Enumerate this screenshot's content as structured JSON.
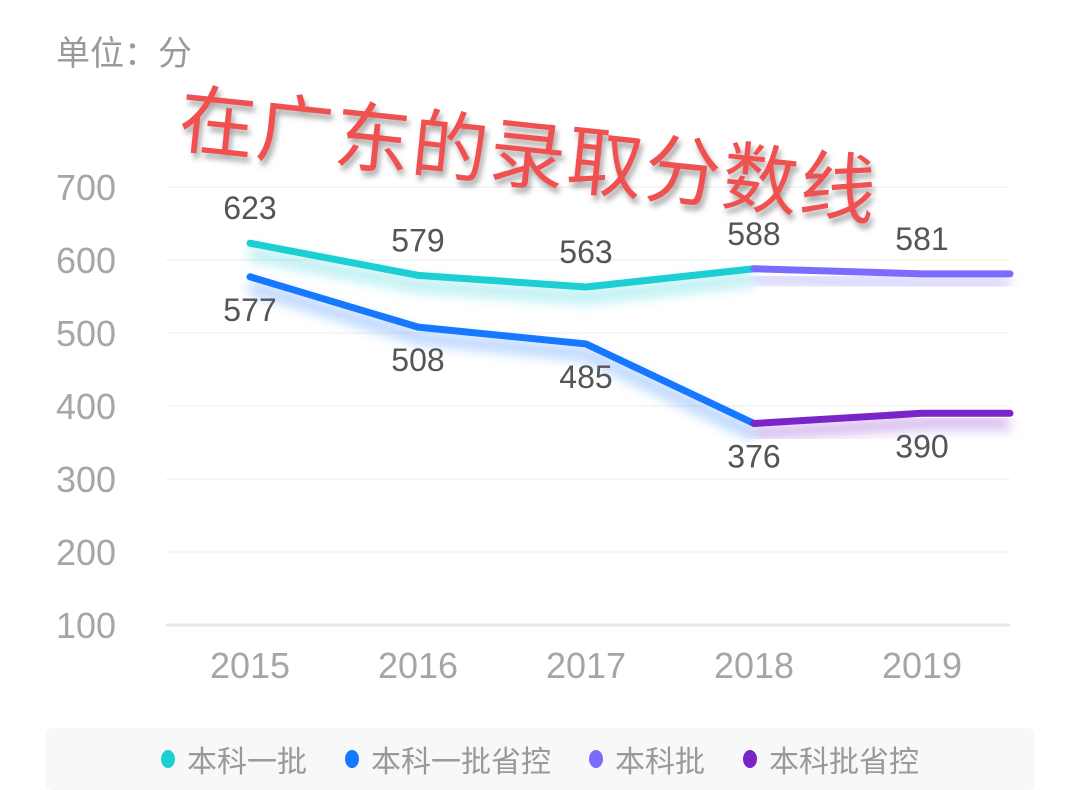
{
  "unit_label": "单位：分",
  "overlay_title": "在广东的录取分数线",
  "chart_data": {
    "type": "line",
    "title": "在广东的录取分数线",
    "ylabel": "单位：分",
    "xlabel": "",
    "categories": [
      "2015",
      "2016",
      "2017",
      "2018",
      "2019"
    ],
    "yticks": [
      100,
      200,
      300,
      400,
      500,
      600,
      700
    ],
    "ylim": [
      100,
      700
    ],
    "grid": true,
    "legend_position": "bottom",
    "series": [
      {
        "name": "本科一批",
        "color": "#1ccfd3",
        "values": [
          623,
          579,
          563,
          588,
          null
        ]
      },
      {
        "name": "本科一批省控",
        "color": "#1677ff",
        "values": [
          577,
          508,
          485,
          376,
          null
        ]
      },
      {
        "name": "本科批",
        "color": "#7b6cff",
        "values": [
          null,
          null,
          null,
          588,
          581
        ]
      },
      {
        "name": "本科批省控",
        "color": "#7a25c9",
        "values": [
          null,
          null,
          null,
          376,
          390
        ]
      }
    ],
    "data_labels": [
      {
        "text": "623",
        "x": "2015",
        "pos": "above"
      },
      {
        "text": "579",
        "x": "2016",
        "pos": "above"
      },
      {
        "text": "563",
        "x": "2017",
        "pos": "above"
      },
      {
        "text": "588",
        "x": "2018",
        "pos": "above"
      },
      {
        "text": "581",
        "x": "2019",
        "pos": "above"
      },
      {
        "text": "577",
        "x": "2015",
        "pos": "below"
      },
      {
        "text": "508",
        "x": "2016",
        "pos": "below"
      },
      {
        "text": "485",
        "x": "2017",
        "pos": "below"
      },
      {
        "text": "376",
        "x": "2018",
        "pos": "below"
      },
      {
        "text": "390",
        "x": "2019",
        "pos": "below"
      }
    ]
  },
  "legend": [
    {
      "label": "本科一批",
      "color": "#1ccfd3"
    },
    {
      "label": "本科一批省控",
      "color": "#1677ff"
    },
    {
      "label": "本科批",
      "color": "#7b6cff"
    },
    {
      "label": "本科批省控",
      "color": "#7a25c9"
    }
  ]
}
